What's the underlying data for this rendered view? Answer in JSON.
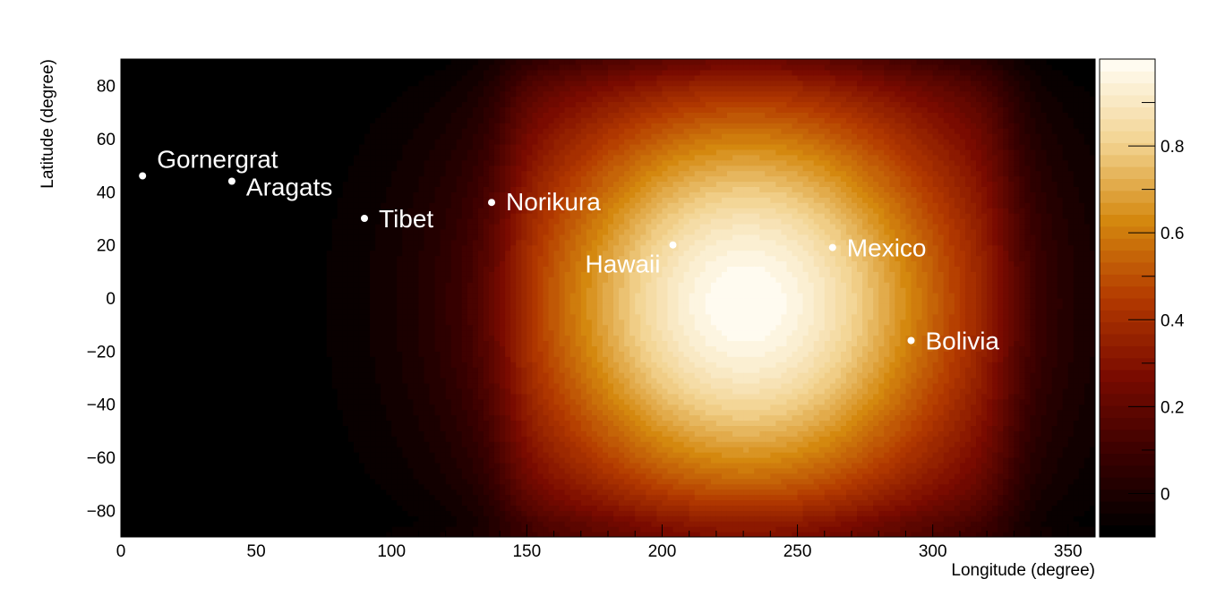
{
  "chart_data": {
    "type": "heatmap",
    "title": "",
    "xlabel": "Longitude (degree)",
    "ylabel": "Latitude (degree)",
    "xlim": [
      0,
      360
    ],
    "ylim": [
      -90,
      90
    ],
    "xticks": [
      0,
      50,
      100,
      150,
      200,
      250,
      300,
      350
    ],
    "yticks": [
      -80,
      -60,
      -40,
      -20,
      0,
      20,
      40,
      60,
      80
    ],
    "grid": false,
    "colorbar": {
      "range": [
        -0.1,
        1.0
      ],
      "ticks": [
        0,
        0.2,
        0.4,
        0.6,
        0.8
      ],
      "colormap": [
        "#000000",
        "#3a0000",
        "#7a0b00",
        "#b33a00",
        "#d4880f",
        "#f2d390",
        "#fffbf0"
      ]
    },
    "field": {
      "peak_value": 1.0,
      "peak_lon": 231,
      "peak_lat": -2,
      "plateau_value": 0.1,
      "plateau_lon_range": [
        143,
        327
      ],
      "plateau_lat_max": 88
    },
    "sites": [
      {
        "name": "Gornergrat",
        "lon": 8,
        "lat": 46
      },
      {
        "name": "Aragats",
        "lon": 41,
        "lat": 44
      },
      {
        "name": "Tibet",
        "lon": 90,
        "lat": 30
      },
      {
        "name": "Norikura",
        "lon": 137,
        "lat": 36
      },
      {
        "name": "Hawaii",
        "lon": 204,
        "lat": 20
      },
      {
        "name": "Mexico",
        "lon": 263,
        "lat": 19
      },
      {
        "name": "Bolivia",
        "lon": 292,
        "lat": -16
      }
    ]
  }
}
